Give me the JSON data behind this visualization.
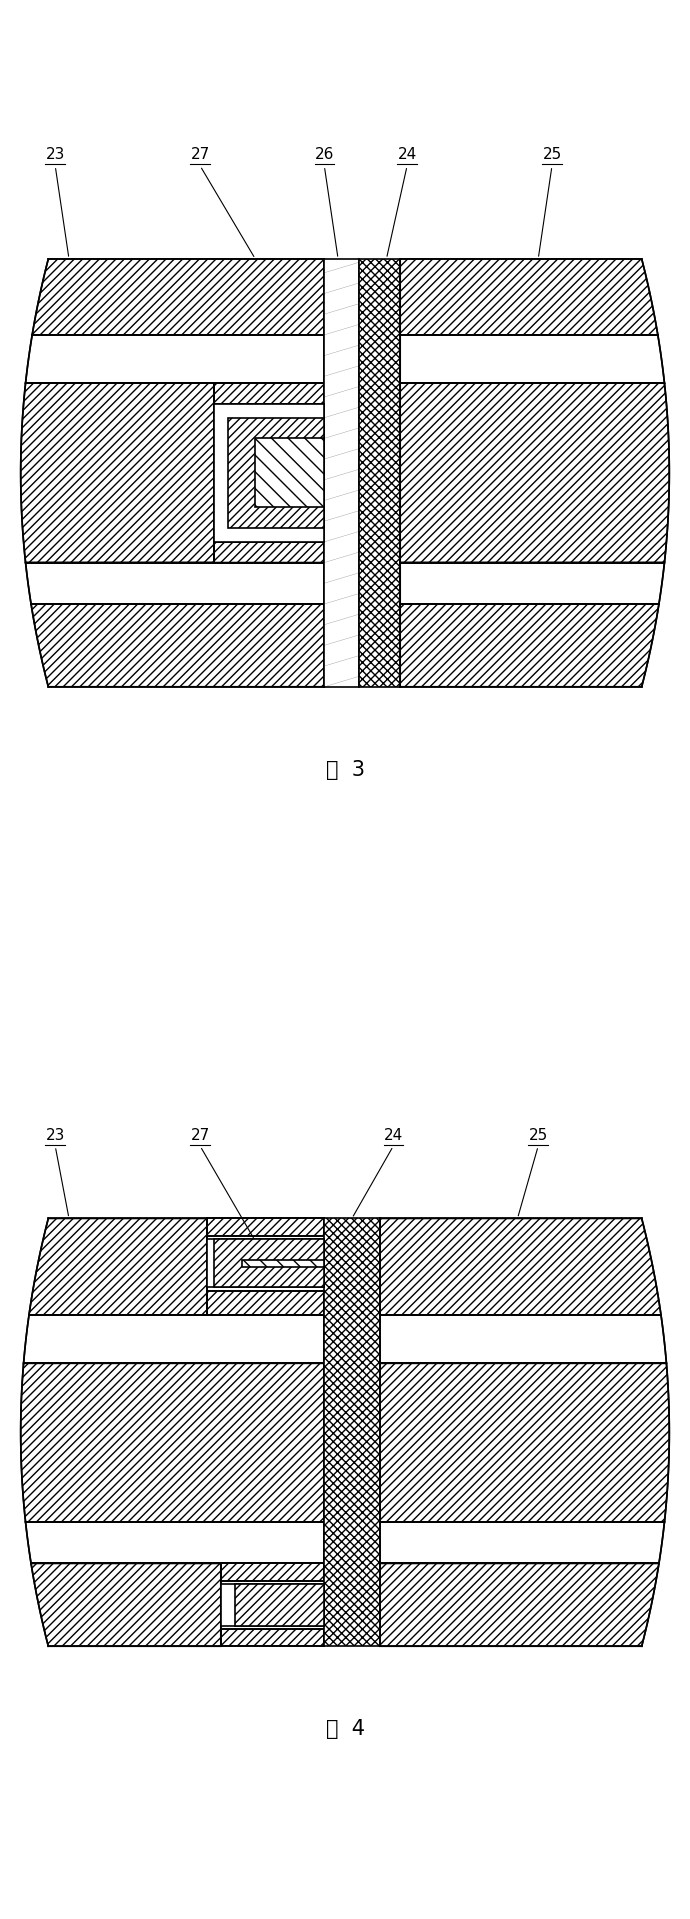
{
  "fig_width": 6.9,
  "fig_height": 19.19,
  "bg_color": "#ffffff",
  "line_color": "#000000",
  "fig3_caption": "图  3",
  "fig4_caption": "图  4",
  "label_fontsize": 11,
  "caption_fontsize": 15
}
